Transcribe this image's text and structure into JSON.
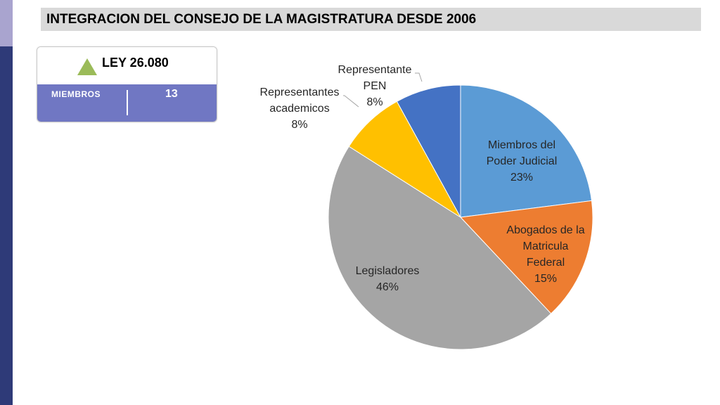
{
  "title": "INTEGRACION DEL CONSEJO DE LA MAGISTRATURA DESDE 2006",
  "card": {
    "law": "LEY 26.080",
    "members_label": "MIEMBROS",
    "members_value": "13",
    "indicator_icon": "green-triangle-up",
    "colors": {
      "bottom": "#7077c3",
      "indicator": "#9bbb59"
    }
  },
  "chart_data": {
    "type": "pie",
    "slices": [
      {
        "name": "Miembros del Poder Judicial",
        "value": 23,
        "label_lines": [
          "Miembros del",
          "Poder Judicial",
          "23%"
        ],
        "color": "#5b9bd5"
      },
      {
        "name": "Abogados de la Matricula Federal",
        "value": 15,
        "label_lines": [
          "Abogados de la",
          "Matricula",
          "Federal",
          "15%"
        ],
        "color": "#ed7d31"
      },
      {
        "name": "Legisladores",
        "value": 46,
        "label_lines": [
          "Legisladores",
          "46%"
        ],
        "color": "#a5a5a5"
      },
      {
        "name": "Representantes academicos",
        "value": 8,
        "label_lines": [
          "Representantes",
          "academicos",
          "8%"
        ],
        "color": "#ffc000"
      },
      {
        "name": "Representante PEN",
        "value": 8,
        "label_lines": [
          "Representante",
          "PEN",
          "8%"
        ],
        "color": "#4472c4"
      }
    ]
  }
}
